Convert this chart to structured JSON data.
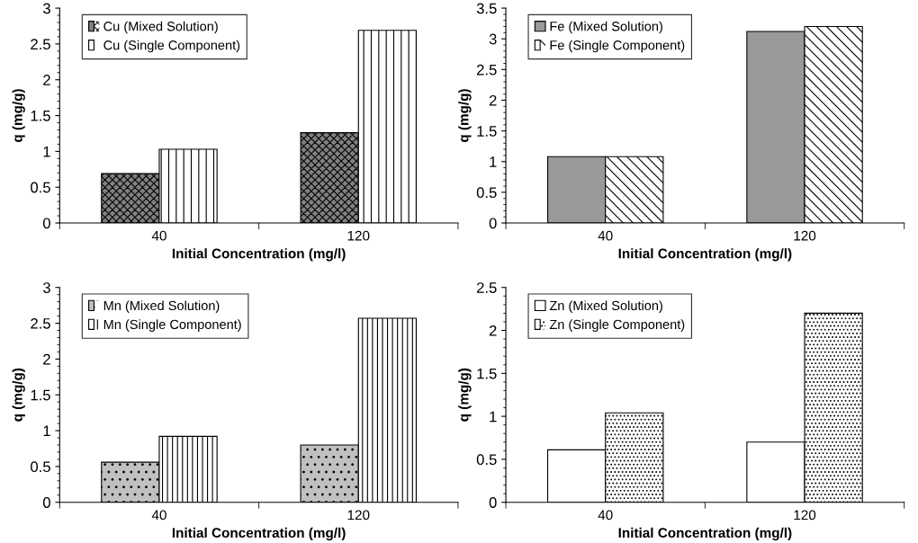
{
  "chart_data": [
    {
      "type": "bar",
      "xlabel": "Initial Concentration (mg/l)",
      "ylabel": "q (mg/g)",
      "categories": [
        "40",
        "120"
      ],
      "ylim": [
        0,
        3
      ],
      "yticks": [
        0,
        0.5,
        1,
        1.5,
        2,
        2.5,
        3
      ],
      "legend": "top left",
      "grid": false,
      "series": [
        {
          "name": "Cu (Mixed Solution)",
          "color": "#808080",
          "values": [
            0.69,
            1.26
          ]
        },
        {
          "name": "Cu (Single Component)",
          "color": "#ffffff",
          "values": [
            1.03,
            2.69
          ]
        }
      ]
    },
    {
      "type": "bar",
      "xlabel": "Initial Concentration (mg/l)",
      "ylabel": "q (mg/g)",
      "categories": [
        "40",
        "120"
      ],
      "ylim": [
        0,
        3.5
      ],
      "yticks": [
        0,
        0.5,
        1,
        1.5,
        2,
        2.5,
        3,
        3.5
      ],
      "legend": "top left",
      "grid": false,
      "series": [
        {
          "name": "Fe (Mixed Solution)",
          "color": "#999999",
          "values": [
            1.08,
            3.12
          ]
        },
        {
          "name": "Fe (Single Component)",
          "color": "#ffffff",
          "values": [
            1.08,
            3.2
          ]
        }
      ]
    },
    {
      "type": "bar",
      "xlabel": "Initial Concentration (mg/l)",
      "ylabel": "q (mg/g)",
      "categories": [
        "40",
        "120"
      ],
      "ylim": [
        0,
        3
      ],
      "yticks": [
        0,
        0.5,
        1,
        1.5,
        2,
        2.5,
        3
      ],
      "legend": "top left",
      "grid": false,
      "series": [
        {
          "name": "Mn (Mixed Solution)",
          "color": "#c0c0c0",
          "values": [
            0.56,
            0.8
          ]
        },
        {
          "name": "Mn (Single Component)",
          "color": "#ffffff",
          "values": [
            0.92,
            2.57
          ]
        }
      ]
    },
    {
      "type": "bar",
      "xlabel": "Initial Concentration (mg/l)",
      "ylabel": "q (mg/g)",
      "categories": [
        "40",
        "120"
      ],
      "ylim": [
        0,
        2.5
      ],
      "yticks": [
        0,
        0.5,
        1,
        1.5,
        2,
        2.5
      ],
      "legend": "top left",
      "grid": false,
      "series": [
        {
          "name": "Zn (Mixed Solution)",
          "color": "#ffffff",
          "values": [
            0.61,
            0.7
          ]
        },
        {
          "name": "Zn (Single Component)",
          "color": "#ffffff",
          "values": [
            1.04,
            2.2
          ]
        }
      ]
    }
  ]
}
